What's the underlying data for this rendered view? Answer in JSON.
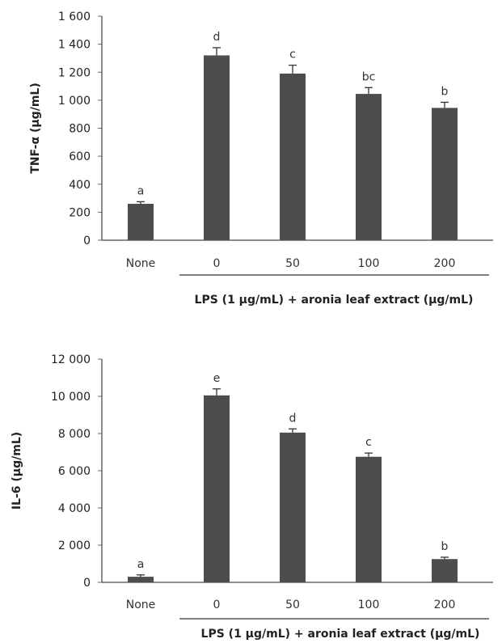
{
  "chart_data": [
    {
      "type": "bar",
      "ylabel": "TNF-α (μg/mL)",
      "xlabel": "LPS (1 μg/mL) + aronia leaf extract (μg/mL)",
      "categories": [
        "None",
        "0",
        "50",
        "100",
        "200"
      ],
      "values": [
        260,
        1320,
        1190,
        1045,
        945
      ],
      "errors": [
        15,
        55,
        60,
        45,
        40
      ],
      "letters": [
        "a",
        "d",
        "c",
        "bc",
        "b"
      ],
      "ylim": [
        0,
        1600
      ],
      "yticks": [
        0,
        200,
        400,
        600,
        800,
        1000,
        1200,
        1400,
        1600
      ],
      "ytick_labels": [
        "0",
        "200",
        "400",
        "600",
        "800",
        "1 000",
        "1 200",
        "1 400",
        "1 600"
      ],
      "bar_color": "#4d4d4d",
      "grid": false,
      "legend": "none"
    },
    {
      "type": "bar",
      "ylabel": "IL-6 (μg/mL)",
      "xlabel": "LPS (1 μg/mL) + aronia leaf extract (μg/mL)",
      "categories": [
        "None",
        "0",
        "50",
        "100",
        "200"
      ],
      "values": [
        300,
        10050,
        8050,
        6750,
        1250
      ],
      "errors": [
        100,
        350,
        200,
        200,
        100
      ],
      "letters": [
        "a",
        "e",
        "d",
        "c",
        "b"
      ],
      "ylim": [
        0,
        12000
      ],
      "yticks": [
        0,
        2000,
        4000,
        6000,
        8000,
        10000,
        12000
      ],
      "ytick_labels": [
        "0",
        "2 000",
        "4 000",
        "6 000",
        "8 000",
        "10 000",
        "12 000"
      ],
      "bar_color": "#4d4d4d",
      "grid": false,
      "legend": "none"
    }
  ]
}
